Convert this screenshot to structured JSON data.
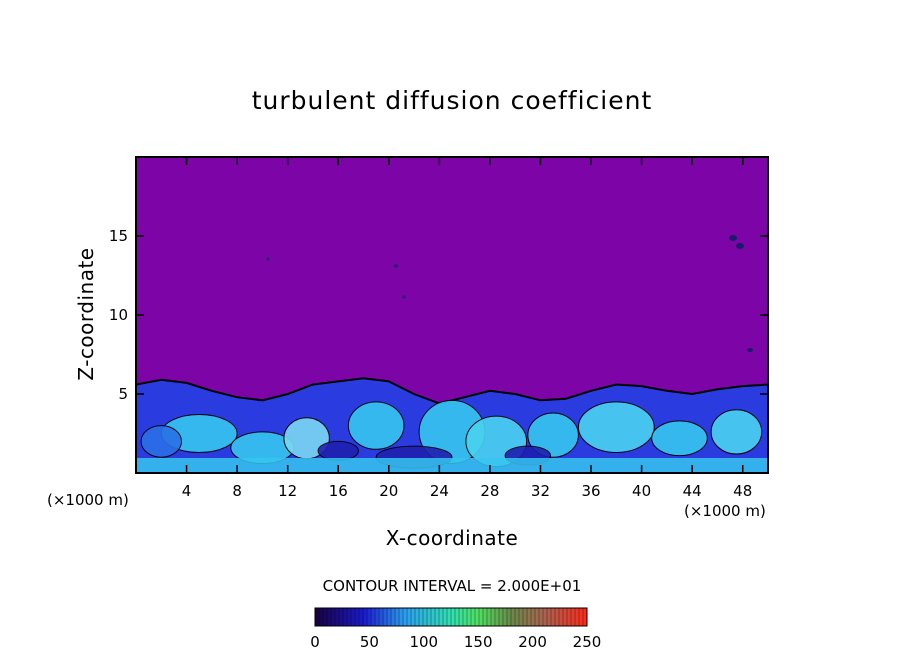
{
  "chart_data": {
    "type": "heatmap",
    "title": "turbulent diffusion coefficient",
    "xlabel": "X-coordinate",
    "ylabel": "Z-coordinate",
    "x_unit": "(×1000 m)",
    "y_unit": "(×1000 m)",
    "xlim": [
      0,
      50
    ],
    "ylim": [
      0,
      20
    ],
    "x_ticks": [
      "4",
      "8",
      "12",
      "16",
      "20",
      "24",
      "28",
      "32",
      "36",
      "40",
      "44",
      "48"
    ],
    "y_ticks": [
      "5",
      "10",
      "15"
    ],
    "contour_interval_text": "CONTOUR INTERVAL = 2.000E+01",
    "colorbar": {
      "min": 0,
      "max": 250,
      "tick_labels": [
        "0",
        "50",
        "100",
        "150",
        "200",
        "250"
      ]
    },
    "turbulent_layer_top_km": [
      5.6,
      5.9,
      5.7,
      5.2,
      4.8,
      4.6,
      5.0,
      5.6,
      5.8,
      6.0,
      5.8,
      5.0,
      4.4,
      4.8,
      5.2,
      5.0,
      4.6,
      4.7,
      5.2,
      5.6,
      5.5,
      5.2,
      5.0,
      5.3,
      5.5,
      5.6
    ]
  },
  "colors": {
    "background_field": "#7d05a8",
    "low_turbulence": "#2d27e0",
    "high_turbulence": "#37c8f0",
    "colorbar_start": "#20004a",
    "colorbar_end": "#ff2a1a"
  }
}
